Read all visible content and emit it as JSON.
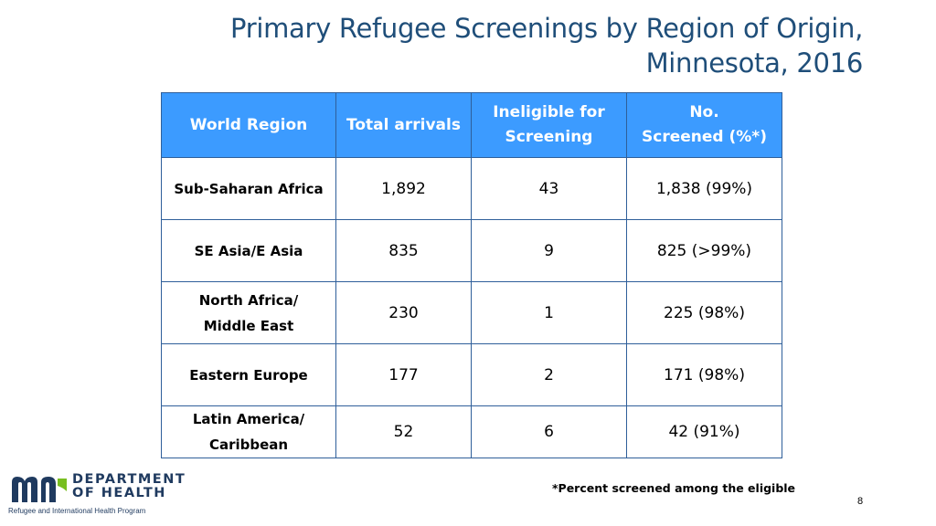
{
  "title": {
    "line1": "Primary Refugee Screenings by Region of Origin,",
    "line2": "Minnesota, 2016"
  },
  "table": {
    "headers": [
      {
        "line1": "World Region",
        "line2": ""
      },
      {
        "line1": "Total arrivals",
        "line2": ""
      },
      {
        "line1": "Ineligible  for",
        "line2": "Screening"
      },
      {
        "line1": "No.",
        "line2": "Screened (%*)"
      }
    ],
    "rows": [
      {
        "region_line1": "Sub-Saharan Africa",
        "region_line2": "",
        "total": "1,892",
        "ineligible": "43",
        "screened": "1,838 (99%)"
      },
      {
        "region_line1": "SE Asia/E Asia",
        "region_line2": "",
        "total": "835",
        "ineligible": "9",
        "screened": "825 (>99%)"
      },
      {
        "region_line1": "North Africa/",
        "region_line2": "Middle East",
        "total": "230",
        "ineligible": "1",
        "screened": "225 (98%)"
      },
      {
        "region_line1": "Eastern Europe",
        "region_line2": "",
        "total": "177",
        "ineligible": "2",
        "screened": "171 (98%)"
      },
      {
        "region_line1": "Latin America/",
        "region_line2": "Caribbean",
        "total": "52",
        "ineligible": "6",
        "screened": "42 (91%)"
      }
    ]
  },
  "footnote": "*Percent screened among the eligible",
  "page_number": "8",
  "logo": {
    "line1": "DEPARTMENT",
    "line2": "OF HEALTH",
    "program": "Refugee and International Health Program",
    "colors": {
      "navy": "#1f3a5f",
      "green": "#78be20"
    }
  }
}
